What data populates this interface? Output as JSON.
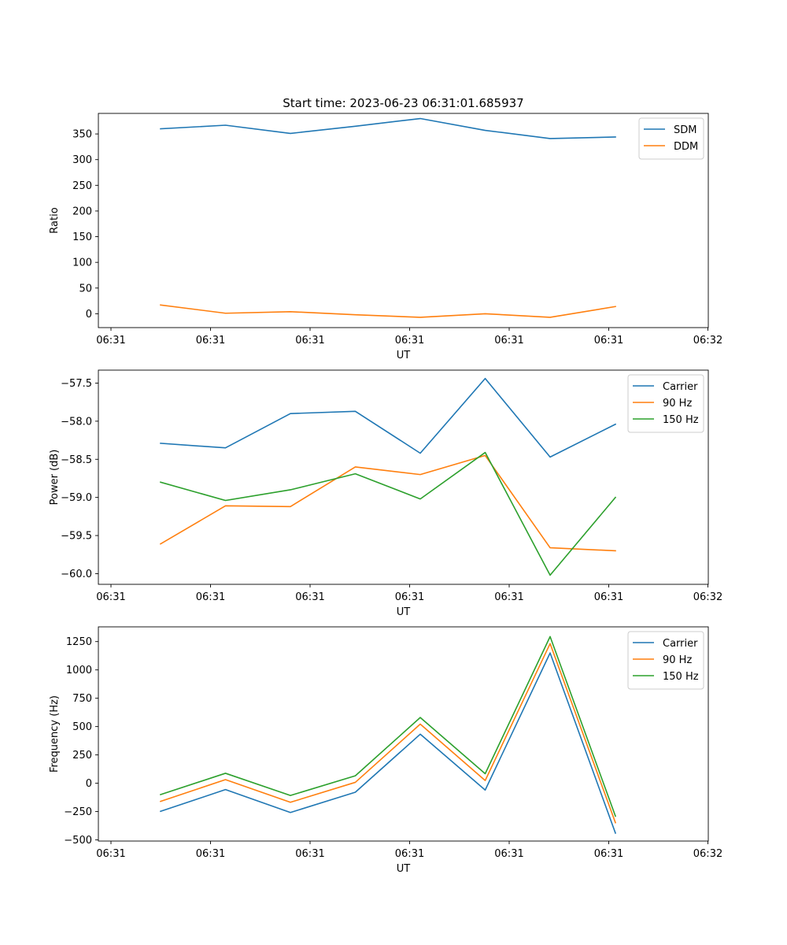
{
  "title": "Start time: 2023-06-23 06:31:01.685937",
  "colors": {
    "blue": "#1f77b4",
    "orange": "#ff7f0e",
    "green": "#2ca02c"
  },
  "chart_data": [
    {
      "type": "line",
      "title": "Start time: 2023-06-23 06:31:01.685937",
      "xlabel": "UT",
      "ylabel": "Ratio",
      "x_ticks": [
        "06:31",
        "06:31",
        "06:31",
        "06:31",
        "06:31",
        "06:31",
        "06:32"
      ],
      "y_ticks": [
        "0",
        "50",
        "100",
        "150",
        "200",
        "250",
        "300",
        "350"
      ],
      "ylim": [
        -27,
        390
      ],
      "legend": "top-right",
      "grid": false,
      "series": [
        {
          "name": "SDM",
          "color": "#1f77b4",
          "values": [
            360,
            367,
            351,
            365,
            380,
            357,
            341,
            344
          ]
        },
        {
          "name": "DDM",
          "color": "#ff7f0e",
          "values": [
            17,
            1,
            4,
            -2,
            -7,
            0,
            -7,
            14
          ]
        }
      ]
    },
    {
      "type": "line",
      "title": "",
      "xlabel": "UT",
      "ylabel": "Power (dB)",
      "x_ticks": [
        "06:31",
        "06:31",
        "06:31",
        "06:31",
        "06:31",
        "06:31",
        "06:32"
      ],
      "y_ticks": [
        "−60.0",
        "−59.5",
        "−59.0",
        "−58.5",
        "−58.0",
        "−57.5"
      ],
      "ylim": [
        -60.14,
        -57.33
      ],
      "legend": "top-right",
      "grid": false,
      "series": [
        {
          "name": "Carrier",
          "color": "#1f77b4",
          "values": [
            -58.29,
            -58.35,
            -57.9,
            -57.87,
            -58.42,
            -57.44,
            -58.47,
            -58.04
          ]
        },
        {
          "name": "90 Hz",
          "color": "#ff7f0e",
          "values": [
            -59.61,
            -59.11,
            -59.12,
            -58.6,
            -58.7,
            -58.45,
            -59.66,
            -59.7
          ]
        },
        {
          "name": "150 Hz",
          "color": "#2ca02c",
          "values": [
            -58.8,
            -59.04,
            -58.9,
            -58.69,
            -59.02,
            -58.41,
            -60.02,
            -59.0
          ]
        }
      ]
    },
    {
      "type": "line",
      "title": "",
      "xlabel": "UT",
      "ylabel": "Frequency (Hz)",
      "x_ticks": [
        "06:31",
        "06:31",
        "06:31",
        "06:31",
        "06:31",
        "06:31",
        "06:32"
      ],
      "y_ticks": [
        "−500",
        "−250",
        "0",
        "250",
        "500",
        "750",
        "1000",
        "1250"
      ],
      "ylim": [
        -510,
        1380
      ],
      "legend": "top-right",
      "grid": false,
      "series": [
        {
          "name": "Carrier",
          "color": "#1f77b4",
          "values": [
            -248,
            -56,
            -258,
            -79,
            433,
            -60,
            1150,
            -440
          ]
        },
        {
          "name": "90 Hz",
          "color": "#ff7f0e",
          "values": [
            -160,
            32,
            -168,
            8,
            522,
            24,
            1232,
            -348
          ]
        },
        {
          "name": "150 Hz",
          "color": "#2ca02c",
          "values": [
            -100,
            88,
            -108,
            66,
            580,
            84,
            1294,
            -290
          ]
        }
      ]
    }
  ]
}
